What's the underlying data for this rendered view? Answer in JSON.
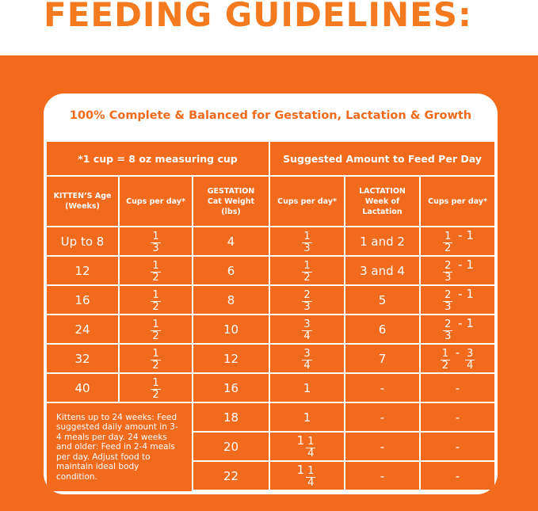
{
  "header": {
    "title": "FEEDING GUIDELINES:"
  },
  "table": {
    "heading": "100% Complete & Balanced for Gestation, Lactation & Growth",
    "top_headers": [
      "*1 cup = 8 oz measuring cup",
      "Suggested Amount to Feed Per Day"
    ],
    "column_headers": [
      "KITTEN’S Age (Weeks)",
      "Cups per day*",
      "GESTATION Cat Weight (lbs)",
      "Cups per day*",
      "LACTATION Week of Lactation",
      "Cups per day*"
    ],
    "kitten_rows": [
      [
        [
          "Up to 8"
        ],
        [
          {
            "num": "1",
            "den": "3"
          }
        ]
      ],
      [
        [
          "12"
        ],
        [
          {
            "num": "1",
            "den": "2"
          }
        ]
      ],
      [
        [
          "16"
        ],
        [
          {
            "num": "1",
            "den": "2"
          }
        ]
      ],
      [
        [
          "24"
        ],
        [
          {
            "num": "1",
            "den": "2"
          }
        ]
      ],
      [
        [
          "32"
        ],
        [
          {
            "num": "1",
            "den": "2"
          }
        ]
      ],
      [
        [
          "40"
        ],
        [
          {
            "num": "1",
            "den": "2"
          }
        ]
      ]
    ],
    "note": "Kittens up to 24 weeks: Feed suggested daily amount in 3-4 meals per day. 24 weeks and older: Feed in 2-4 meals per day. Adjust food to maintain ideal body condition.",
    "adult_rows": [
      [
        [
          "4"
        ],
        [
          {
            "num": "1",
            "den": "3"
          }
        ],
        [
          "1 and 2"
        ],
        [
          {
            "num": "1",
            "den": "2"
          },
          " - 1"
        ]
      ],
      [
        [
          "6"
        ],
        [
          {
            "num": "1",
            "den": "2"
          }
        ],
        [
          "3 and 4"
        ],
        [
          {
            "num": "2",
            "den": "3"
          },
          " - 1"
        ]
      ],
      [
        [
          "8"
        ],
        [
          {
            "num": "2",
            "den": "3"
          }
        ],
        [
          "5"
        ],
        [
          {
            "num": "2",
            "den": "3"
          },
          " - 1"
        ]
      ],
      [
        [
          "10"
        ],
        [
          {
            "num": "3",
            "den": "4"
          }
        ],
        [
          "6"
        ],
        [
          {
            "num": "2",
            "den": "3"
          },
          " - 1"
        ]
      ],
      [
        [
          "12"
        ],
        [
          {
            "num": "3",
            "den": "4"
          }
        ],
        [
          "7"
        ],
        [
          {
            "num": "1",
            "den": "2"
          },
          " - ",
          {
            "num": "3",
            "den": "4"
          }
        ]
      ],
      [
        [
          "16"
        ],
        [
          "1"
        ],
        [
          "-"
        ],
        [
          "-"
        ]
      ],
      [
        [
          "18"
        ],
        [
          "1"
        ],
        [
          "-"
        ],
        [
          "-"
        ]
      ],
      [
        [
          "20"
        ],
        [
          "1",
          {
            "num": "1",
            "den": "4"
          }
        ],
        [
          "-"
        ],
        [
          "-"
        ]
      ],
      [
        [
          "22"
        ],
        [
          "1",
          {
            "num": "1",
            "den": "4"
          }
        ],
        [
          "-"
        ],
        [
          "-"
        ]
      ]
    ]
  }
}
